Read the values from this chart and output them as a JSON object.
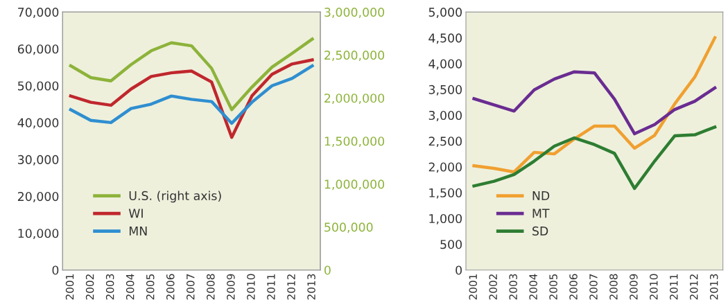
{
  "chart_data": [
    {
      "type": "line",
      "categories": [
        "2001",
        "2002",
        "2003",
        "2004",
        "2005",
        "2006",
        "2007",
        "2008",
        "2009",
        "2010",
        "2011",
        "2012",
        "2013"
      ],
      "ylim": [
        0,
        70000
      ],
      "yticks": [
        {
          "value": 0,
          "label": "0"
        },
        {
          "value": 10000,
          "label": "10,000"
        },
        {
          "value": 20000,
          "label": "20,000"
        },
        {
          "value": 30000,
          "label": "30,000"
        },
        {
          "value": 40000,
          "label": "40,000"
        },
        {
          "value": 50000,
          "label": "50,000"
        },
        {
          "value": 60000,
          "label": "60,000"
        },
        {
          "value": 70000,
          "label": "70,000"
        }
      ],
      "y2lim": [
        0,
        3000000
      ],
      "y2ticks": [
        {
          "value": 0,
          "label": "0"
        },
        {
          "value": 500000,
          "label": "500,000"
        },
        {
          "value": 1000000,
          "label": "1,000,000"
        },
        {
          "value": 1500000,
          "label": "1,500,000"
        },
        {
          "value": 2000000,
          "label": "2,000,000"
        },
        {
          "value": 2500000,
          "label": "2,500,000"
        },
        {
          "value": 3000000,
          "label": "3,000,000"
        }
      ],
      "grid": false,
      "legend": "bottom left",
      "marker": "none",
      "line_style": "solid",
      "series": [
        {
          "name": "U.S. (right axis)",
          "color": "#8db33a",
          "axis": "y2",
          "values": [
            2374000,
            2237000,
            2199000,
            2388000,
            2549000,
            2642000,
            2607000,
            2345000,
            1864000,
            2126000,
            2359000,
            2519000,
            2685000
          ]
        },
        {
          "name": "WI",
          "color": "#c0272d",
          "values": [
            47200,
            45500,
            44700,
            49100,
            52500,
            53500,
            54000,
            51000,
            36000,
            47200,
            53100,
            55900,
            57000
          ]
        },
        {
          "name": "MN",
          "color": "#2f8ed0",
          "values": [
            43500,
            40600,
            40000,
            43800,
            45000,
            47200,
            46300,
            45700,
            39800,
            45500,
            50000,
            52000,
            55400
          ]
        }
      ]
    },
    {
      "type": "line",
      "categories": [
        "2001",
        "2002",
        "2003",
        "2004",
        "2005",
        "2006",
        "2007",
        "2008",
        "2009",
        "2010",
        "2011",
        "2012",
        "2013"
      ],
      "ylim": [
        0,
        5000
      ],
      "yticks": [
        {
          "value": 0,
          "label": "0"
        },
        {
          "value": 500,
          "label": "500"
        },
        {
          "value": 1000,
          "label": "1,000"
        },
        {
          "value": 1500,
          "label": "1,500"
        },
        {
          "value": 2000,
          "label": "2,000"
        },
        {
          "value": 2500,
          "label": "2,500"
        },
        {
          "value": 3000,
          "label": "3,000"
        },
        {
          "value": 3500,
          "label": "3,500"
        },
        {
          "value": 4000,
          "label": "4,000"
        },
        {
          "value": 4500,
          "label": "4,500"
        },
        {
          "value": 5000,
          "label": "5,000"
        }
      ],
      "grid": false,
      "legend": "bottom left",
      "marker": "none",
      "line_style": "solid",
      "series": [
        {
          "name": "ND",
          "color": "#f0a030",
          "values": [
            2020,
            1970,
            1900,
            2280,
            2250,
            2540,
            2790,
            2790,
            2360,
            2610,
            3220,
            3740,
            4500
          ]
        },
        {
          "name": "MT",
          "color": "#6a2c91",
          "values": [
            3320,
            3200,
            3080,
            3490,
            3700,
            3840,
            3820,
            3310,
            2640,
            2820,
            3110,
            3270,
            3530
          ]
        },
        {
          "name": "SD",
          "color": "#2e7d32",
          "values": [
            1630,
            1720,
            1850,
            2110,
            2400,
            2560,
            2430,
            2260,
            1580,
            2110,
            2600,
            2620,
            2770
          ]
        }
      ]
    }
  ]
}
